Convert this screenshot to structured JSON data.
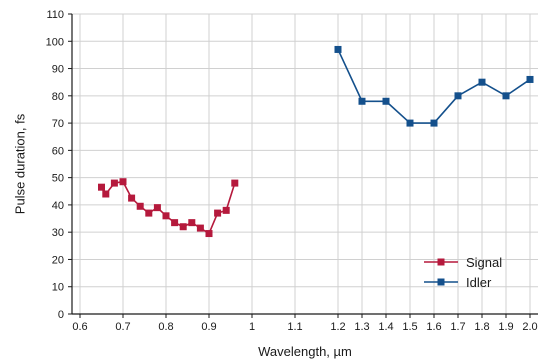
{
  "chart_data": {
    "type": "line",
    "xlabel": "Wavelength, µm",
    "ylabel": "Pulse duration, fs",
    "ylim": [
      0,
      110
    ],
    "y_ticks": [
      0,
      10,
      20,
      30,
      40,
      50,
      60,
      70,
      80,
      90,
      100,
      110
    ],
    "x_ticks": [
      "0.6",
      "0.7",
      "0.8",
      "0.9",
      "1",
      "1.1",
      "1.2",
      "1.3",
      "1.4",
      "1.5",
      "1.6",
      "1.7",
      "1.8",
      "1.9",
      "2.0"
    ],
    "x_axis_scale": "piecewise: 0.6–1.2 µm and 1.2–2.0 µm drawn at different scales",
    "grid": true,
    "legend_position": "bottom-right",
    "series": [
      {
        "name": "Signal",
        "color": "#b5193c",
        "marker": "square",
        "x": [
          0.65,
          0.66,
          0.68,
          0.7,
          0.72,
          0.74,
          0.76,
          0.78,
          0.8,
          0.82,
          0.84,
          0.86,
          0.88,
          0.9,
          0.92,
          0.94,
          0.96
        ],
        "y": [
          46.5,
          44,
          48,
          48.5,
          42.5,
          39.5,
          37,
          39,
          36,
          33.5,
          32,
          33.5,
          31.5,
          29.5,
          37,
          38,
          48
        ]
      },
      {
        "name": "Idler",
        "color": "#14508c",
        "marker": "square",
        "x": [
          1.2,
          1.3,
          1.4,
          1.5,
          1.6,
          1.7,
          1.8,
          1.9,
          2.0
        ],
        "y": [
          97,
          78,
          78,
          70,
          70,
          80,
          85,
          80,
          86
        ]
      }
    ]
  }
}
